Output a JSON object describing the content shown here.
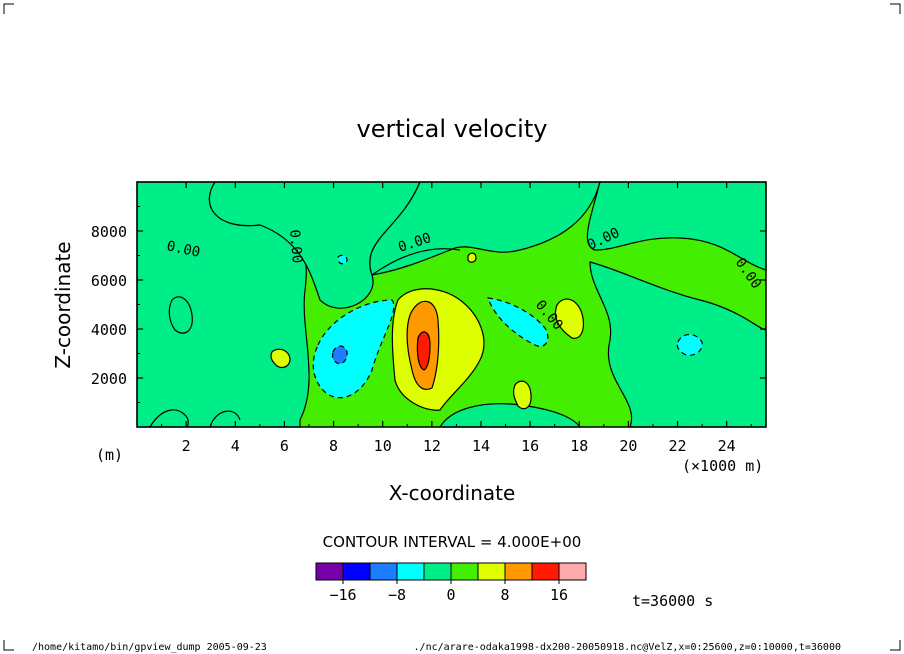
{
  "chart_data": {
    "type": "contour",
    "title": "vertical velocity",
    "xlabel": "X-coordinate",
    "ylabel": "Z-coordinate",
    "x_unit": "(×1000 m)",
    "y_unit": "(m)",
    "xlim": [
      0,
      25.6
    ],
    "ylim": [
      0,
      10000
    ],
    "x_ticks": [
      2,
      4,
      6,
      8,
      10,
      12,
      14,
      16,
      18,
      20,
      22,
      24
    ],
    "y_ticks": [
      2000,
      4000,
      6000,
      8000
    ],
    "contour_labels": [
      "0.00",
      "0.00",
      "0.00",
      "0.00",
      "0.00",
      "0.00"
    ],
    "contour_interval_text": "CONTOUR INTERVAL = 4.000E+00",
    "colorbar": {
      "levels": [
        -20,
        -16,
        -12,
        -8,
        -4,
        0,
        4,
        8,
        12,
        16,
        20
      ],
      "tick_labels": [
        "-16",
        "-8",
        "0",
        "8",
        "16"
      ],
      "colors": [
        "#7700a8",
        "#0000ff",
        "#1e7cff",
        "#00ffff",
        "#00ee88",
        "#44ee00",
        "#ddff00",
        "#ff9900",
        "#ff1a00",
        "#ffaaaa"
      ]
    },
    "features": [
      {
        "x": 11.7,
        "z": 3500,
        "value": 16,
        "kind": "updraft-core"
      },
      {
        "x": 8.3,
        "z": 3000,
        "value": -12,
        "kind": "downdraft-core"
      },
      {
        "x": 15.6,
        "z": 3800,
        "value": -8,
        "kind": "downdraft"
      },
      {
        "x": 22.4,
        "z": 3400,
        "value": -8,
        "kind": "downdraft"
      }
    ],
    "time_label": "t=36000 s"
  },
  "footer": {
    "left": "/home/kitamo/bin/gpview_dump  2005-09-23",
    "right": "./nc/arare-odaka1998-dx200-20050918.nc@VelZ,x=0:25600,z=0:10000,t=36000"
  }
}
